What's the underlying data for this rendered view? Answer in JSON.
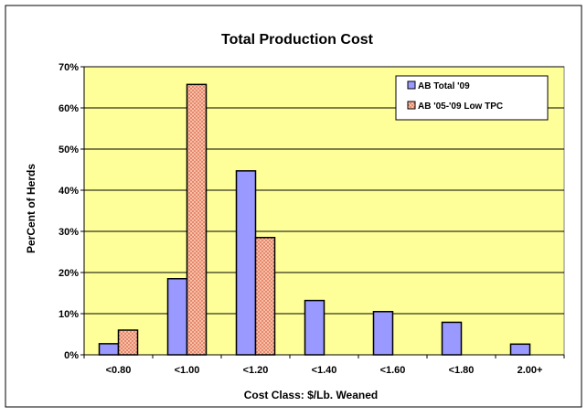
{
  "chart_data": {
    "type": "bar",
    "title": "Total Production Cost",
    "xlabel": "Cost Class: $/Lb. Weaned",
    "ylabel": "PerCent of Herds",
    "categories": [
      "<0.80",
      "<1.00",
      "<1.20",
      "<1.40",
      "<1.60",
      "<1.80",
      "2.00+"
    ],
    "series": [
      {
        "name": "AB Total '09",
        "values": [
          2.7,
          18.5,
          44.7,
          13.2,
          10.5,
          7.9,
          2.6
        ],
        "color": "#9999ff"
      },
      {
        "name": "AB '05-'09 Low TPC",
        "values": [
          6.0,
          65.7,
          28.5,
          0,
          0,
          0,
          0
        ],
        "color": "#f4a98a"
      }
    ],
    "ylim": [
      0,
      70
    ],
    "yticks": [
      "0%",
      "10%",
      "20%",
      "30%",
      "40%",
      "50%",
      "60%",
      "70%"
    ],
    "grid": true,
    "legend": "top-right",
    "plot_background": "#ffff99"
  }
}
